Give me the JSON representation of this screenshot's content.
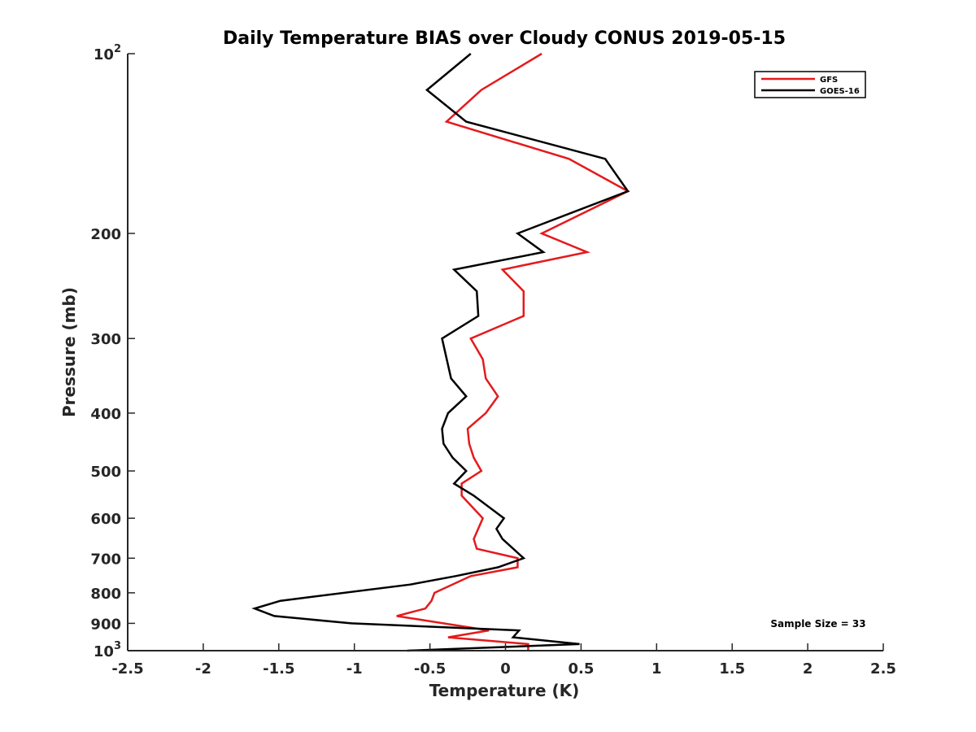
{
  "chart_data": {
    "type": "line",
    "title": "Daily Temperature BIAS over Cloudy CONUS 2019-05-15",
    "xlabel": "Temperature (K)",
    "ylabel": "Pressure (mb)",
    "xlim": [
      -2.5,
      2.5
    ],
    "ylim": [
      100,
      1000
    ],
    "y_scale": "log",
    "y_reversed": true,
    "grid": false,
    "legend_position": "top-right",
    "x_ticks": [
      {
        "value": -2.5,
        "label": "-2.5"
      },
      {
        "value": -2,
        "label": "-2"
      },
      {
        "value": -1.5,
        "label": "-1.5"
      },
      {
        "value": -1,
        "label": "-1"
      },
      {
        "value": -0.5,
        "label": "-0.5"
      },
      {
        "value": 0,
        "label": "0"
      },
      {
        "value": 0.5,
        "label": "0.5"
      },
      {
        "value": 1,
        "label": "1"
      },
      {
        "value": 1.5,
        "label": "1.5"
      },
      {
        "value": 2,
        "label": "2"
      },
      {
        "value": 2.5,
        "label": "2.5"
      }
    ],
    "y_ticks": [
      {
        "value": 100,
        "base": "10",
        "sup": "2"
      },
      {
        "value": 200,
        "base": "200",
        "sup": ""
      },
      {
        "value": 300,
        "base": "300",
        "sup": ""
      },
      {
        "value": 400,
        "base": "400",
        "sup": ""
      },
      {
        "value": 500,
        "base": "500",
        "sup": ""
      },
      {
        "value": 600,
        "base": "600",
        "sup": ""
      },
      {
        "value": 700,
        "base": "700",
        "sup": ""
      },
      {
        "value": 800,
        "base": "800",
        "sup": ""
      },
      {
        "value": 900,
        "base": "900",
        "sup": ""
      },
      {
        "value": 1000,
        "base": "10",
        "sup": "3"
      }
    ],
    "annotation": "Sample Size = 33",
    "series": [
      {
        "name": "GFS",
        "color": "#e41a1c",
        "points": [
          [
            0.24,
            100
          ],
          [
            -0.16,
            115
          ],
          [
            -0.39,
            130
          ],
          [
            0.42,
            150
          ],
          [
            0.81,
            170
          ],
          [
            0.24,
            200
          ],
          [
            0.54,
            215
          ],
          [
            -0.02,
            230
          ],
          [
            0.12,
            250
          ],
          [
            0.12,
            275
          ],
          [
            -0.23,
            300
          ],
          [
            -0.15,
            325
          ],
          [
            -0.13,
            350
          ],
          [
            -0.05,
            375
          ],
          [
            -0.13,
            400
          ],
          [
            -0.25,
            425
          ],
          [
            -0.24,
            450
          ],
          [
            -0.21,
            475
          ],
          [
            -0.16,
            500
          ],
          [
            -0.29,
            525
          ],
          [
            -0.29,
            550
          ],
          [
            -0.15,
            600
          ],
          [
            -0.21,
            650
          ],
          [
            -0.19,
            675
          ],
          [
            0.08,
            700
          ],
          [
            0.08,
            725
          ],
          [
            -0.23,
            750
          ],
          [
            -0.47,
            800
          ],
          [
            -0.49,
            825
          ],
          [
            -0.53,
            850
          ],
          [
            -0.72,
            875
          ],
          [
            -0.11,
            925
          ],
          [
            -0.38,
            950
          ],
          [
            0.15,
            975
          ],
          [
            0.15,
            1000
          ]
        ]
      },
      {
        "name": "GOES-16",
        "color": "#000000",
        "points": [
          [
            -0.23,
            100
          ],
          [
            -0.52,
            115
          ],
          [
            -0.26,
            130
          ],
          [
            0.66,
            150
          ],
          [
            0.81,
            170
          ],
          [
            0.08,
            200
          ],
          [
            0.25,
            215
          ],
          [
            -0.34,
            230
          ],
          [
            -0.19,
            250
          ],
          [
            -0.18,
            275
          ],
          [
            -0.42,
            300
          ],
          [
            -0.36,
            350
          ],
          [
            -0.26,
            375
          ],
          [
            -0.38,
            400
          ],
          [
            -0.42,
            425
          ],
          [
            -0.41,
            450
          ],
          [
            -0.35,
            475
          ],
          [
            -0.26,
            500
          ],
          [
            -0.34,
            525
          ],
          [
            -0.21,
            550
          ],
          [
            -0.01,
            600
          ],
          [
            -0.06,
            625
          ],
          [
            -0.02,
            650
          ],
          [
            0.12,
            700
          ],
          [
            -0.05,
            725
          ],
          [
            -0.33,
            750
          ],
          [
            -0.63,
            775
          ],
          [
            -1.49,
            825
          ],
          [
            -1.66,
            850
          ],
          [
            -1.53,
            875
          ],
          [
            -1.02,
            900
          ],
          [
            0.09,
            925
          ],
          [
            0.05,
            950
          ],
          [
            0.49,
            975
          ],
          [
            -0.65,
            1000
          ]
        ]
      }
    ]
  }
}
